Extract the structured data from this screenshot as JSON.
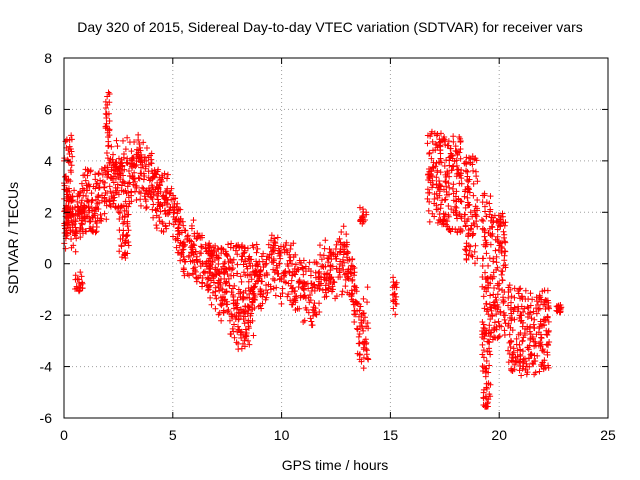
{
  "chart_data": {
    "type": "scatter",
    "title": "Day 320 of 2015, Sidereal Day-to-day VTEC variation (SDTVAR) for receiver vars",
    "xlabel": "GPS time / hours",
    "ylabel": "SDTVAR / TECUs",
    "xlim": [
      0,
      25
    ],
    "ylim": [
      -6,
      8
    ],
    "xticks": [
      0,
      5,
      10,
      15,
      20,
      25
    ],
    "yticks": [
      -6,
      -4,
      -2,
      0,
      2,
      4,
      6,
      8
    ],
    "grid": true,
    "marker": "+",
    "color": "#ff0000",
    "series": [
      {
        "name": "SDTVAR",
        "trend": [
          [
            0.0,
            1.2
          ],
          [
            0.2,
            2.2
          ],
          [
            0.5,
            1.6
          ],
          [
            0.8,
            2.2
          ],
          [
            1.0,
            2.5
          ],
          [
            1.3,
            2.4
          ],
          [
            1.6,
            2.3
          ],
          [
            2.0,
            3.0
          ],
          [
            2.3,
            3.3
          ],
          [
            2.6,
            3.5
          ],
          [
            3.0,
            3.4
          ],
          [
            3.3,
            3.6
          ],
          [
            3.6,
            3.8
          ],
          [
            4.0,
            3.0
          ],
          [
            4.3,
            2.8
          ],
          [
            4.6,
            2.5
          ],
          [
            5.0,
            2.0
          ],
          [
            5.3,
            1.2
          ],
          [
            5.6,
            0.6
          ],
          [
            6.0,
            0.3
          ],
          [
            6.4,
            0.0
          ],
          [
            6.8,
            -0.4
          ],
          [
            7.2,
            -0.9
          ],
          [
            7.6,
            -1.4
          ],
          [
            8.0,
            -2.0
          ],
          [
            8.3,
            -2.2
          ],
          [
            8.6,
            -1.6
          ],
          [
            9.0,
            -0.9
          ],
          [
            9.4,
            -0.2
          ],
          [
            9.8,
            0.1
          ],
          [
            10.2,
            -0.2
          ],
          [
            10.6,
            -0.6
          ],
          [
            11.0,
            -1.0
          ],
          [
            11.4,
            -1.4
          ],
          [
            11.8,
            -0.6
          ],
          [
            12.2,
            -0.3
          ],
          [
            12.6,
            0.1
          ],
          [
            13.0,
            0.2
          ],
          [
            13.3,
            -1.2
          ],
          [
            13.6,
            -2.8
          ],
          [
            14.0,
            -2.4
          ]
        ],
        "scatter_spread": 1.0,
        "clusters": [
          {
            "x": [
              0.0,
              0.4
            ],
            "y": [
              1.5,
              5.0
            ]
          },
          {
            "x": [
              0.5,
              0.9
            ],
            "y": [
              -1.1,
              -0.3
            ]
          },
          {
            "x": [
              1.9,
              2.1
            ],
            "y": [
              4.5,
              6.9
            ]
          },
          {
            "x": [
              2.5,
              3.0
            ],
            "y": [
              0.2,
              2.3
            ]
          },
          {
            "x": [
              6.5,
              9.0
            ],
            "y": [
              -0.5,
              0.8
            ]
          },
          {
            "x": [
              13.6,
              13.9
            ],
            "y": [
              1.5,
              2.2
            ]
          },
          {
            "x": [
              15.1,
              15.3
            ],
            "y": [
              -2.0,
              -0.5
            ]
          },
          {
            "x": [
              16.7,
              17.5
            ],
            "y": [
              1.5,
              5.2
            ]
          },
          {
            "x": [
              17.5,
              18.3
            ],
            "y": [
              1.2,
              5.0
            ]
          },
          {
            "x": [
              18.4,
              19.0
            ],
            "y": [
              0.0,
              4.2
            ]
          },
          {
            "x": [
              19.2,
              19.6
            ],
            "y": [
              -5.6,
              2.8
            ]
          },
          {
            "x": [
              19.6,
              20.3
            ],
            "y": [
              -3.0,
              2.0
            ]
          },
          {
            "x": [
              20.4,
              21.0
            ],
            "y": [
              -4.2,
              -0.8
            ]
          },
          {
            "x": [
              21.0,
              22.3
            ],
            "y": [
              -4.4,
              -1.0
            ]
          },
          {
            "x": [
              22.6,
              22.9
            ],
            "y": [
              -1.9,
              -1.6
            ]
          }
        ]
      }
    ]
  }
}
